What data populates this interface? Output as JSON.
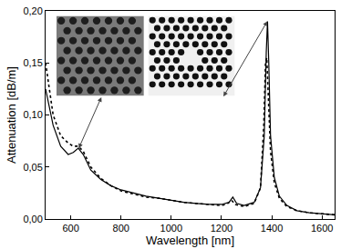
{
  "chart_data": {
    "type": "line",
    "x_label": "Wavelength [nm]",
    "y_label": "Attenuation [dB/m]",
    "xlim": [
      500,
      1650
    ],
    "xticks": [
      600,
      800,
      1000,
      1200,
      1400,
      1600
    ],
    "ylim": [
      0,
      0.2
    ],
    "yticks": [
      {
        "value": 0,
        "label": "0,00"
      },
      {
        "value": 0.05,
        "label": "0,05"
      },
      {
        "value": 0.1,
        "label": "0,10"
      },
      {
        "value": 0.15,
        "label": "0,15"
      },
      {
        "value": 0.2,
        "label": "0,20"
      }
    ],
    "grid": false,
    "series": [
      {
        "color": "#000000",
        "line_style": "solid",
        "x": [
          500,
          530,
          560,
          590,
          610,
          630,
          650,
          680,
          720,
          760,
          800,
          850,
          900,
          950,
          1000,
          1050,
          1100,
          1150,
          1200,
          1230,
          1245,
          1260,
          1290,
          1330,
          1355,
          1370,
          1378,
          1383,
          1388,
          1395,
          1410,
          1430,
          1460,
          1500,
          1550,
          1600,
          1650
        ],
        "y": [
          0.125,
          0.09,
          0.07,
          0.062,
          0.064,
          0.068,
          0.062,
          0.047,
          0.038,
          0.032,
          0.028,
          0.025,
          0.022,
          0.02,
          0.018,
          0.016,
          0.015,
          0.014,
          0.014,
          0.016,
          0.021,
          0.015,
          0.013,
          0.016,
          0.03,
          0.08,
          0.16,
          0.19,
          0.15,
          0.08,
          0.04,
          0.022,
          0.013,
          0.008,
          0.006,
          0.005,
          0.004
        ]
      },
      {
        "color": "#000000",
        "line_style": "dot",
        "x": [
          500,
          530,
          560,
          590,
          610,
          630,
          650,
          680,
          720,
          760,
          800,
          850,
          900,
          950,
          1000,
          1050,
          1100,
          1150,
          1200,
          1225,
          1240,
          1255,
          1290,
          1330,
          1355,
          1368,
          1375,
          1380,
          1386,
          1395,
          1410,
          1430,
          1460,
          1500,
          1550,
          1600,
          1650
        ],
        "y": [
          0.15,
          0.1,
          0.08,
          0.073,
          0.07,
          0.07,
          0.065,
          0.05,
          0.039,
          0.032,
          0.027,
          0.024,
          0.021,
          0.02,
          0.018,
          0.016,
          0.015,
          0.014,
          0.013,
          0.015,
          0.018,
          0.014,
          0.012,
          0.015,
          0.03,
          0.09,
          0.15,
          0.155,
          0.12,
          0.065,
          0.035,
          0.02,
          0.012,
          0.008,
          0.006,
          0.005,
          0.004
        ]
      }
    ]
  }
}
